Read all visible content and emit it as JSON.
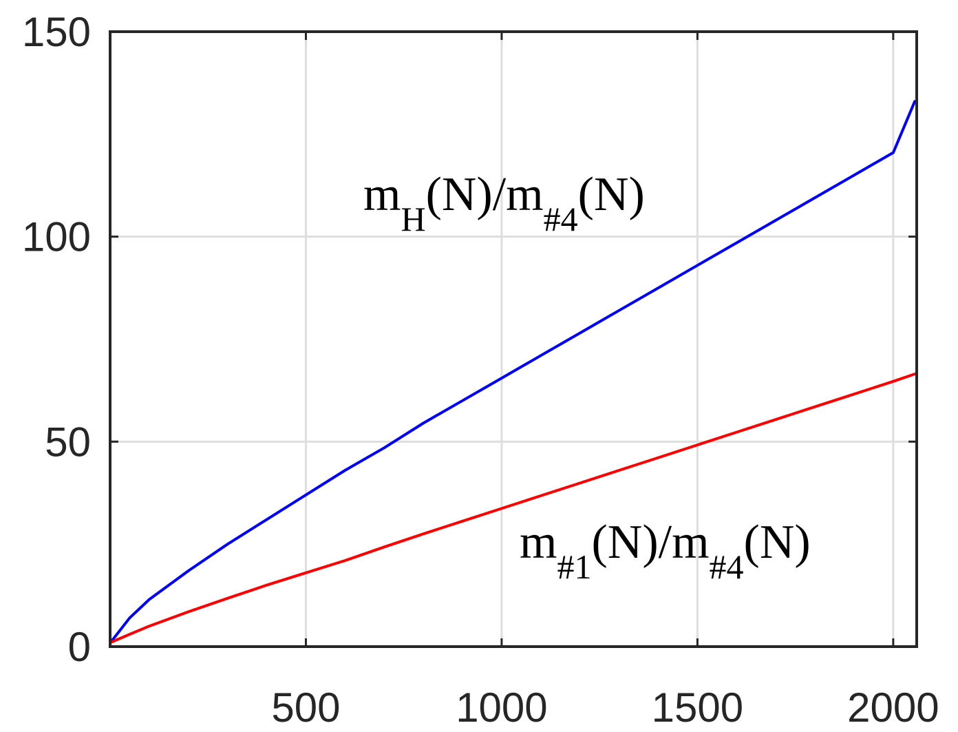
{
  "chart_data": {
    "type": "line",
    "title": "",
    "xlabel": "",
    "ylabel": "",
    "xlim": [
      0,
      2060
    ],
    "ylim": [
      0,
      150
    ],
    "grid": true,
    "x_ticks": [
      500,
      1000,
      1500,
      2000
    ],
    "x_tick_labels": [
      "500",
      "1000",
      "1500",
      "2000"
    ],
    "y_ticks": [
      0,
      50,
      100,
      150
    ],
    "y_tick_labels": [
      "0",
      "50",
      "100",
      "150"
    ],
    "x": [
      1,
      50,
      100,
      200,
      300,
      400,
      500,
      600,
      700,
      800,
      900,
      1000,
      1100,
      1200,
      1300,
      1400,
      1500,
      1600,
      1700,
      1800,
      1900,
      2000,
      2055
    ],
    "series": [
      {
        "name": "m_H(N)/m_#4(N)",
        "color": "#0000ff",
        "values": [
          1,
          7,
          11.5,
          18.5,
          25,
          31,
          37,
          43,
          48.5,
          54.5,
          60,
          65.5,
          71,
          76.5,
          82,
          87.5,
          93,
          98.5,
          104,
          109.5,
          115,
          120.5,
          133
        ]
      },
      {
        "name": "m_#1(N)/m_#4(N)",
        "color": "#ff0000",
        "values": [
          1,
          3,
          5,
          8.5,
          11.8,
          15,
          18,
          21,
          24.3,
          27.5,
          30.6,
          33.7,
          36.8,
          39.9,
          43,
          46.1,
          49.2,
          52.3,
          55.4,
          58.5,
          61.6,
          64.7,
          66.5
        ]
      }
    ],
    "annotations": [
      {
        "base": "m",
        "sub1": "H",
        "mid": "(N)/m",
        "sub2": "#4",
        "tail": "(N)",
        "color": "#000000"
      },
      {
        "base": "m",
        "sub1": "#1",
        "mid": "(N)/m",
        "sub2": "#4",
        "tail": "(N)",
        "color": "#000000"
      }
    ]
  }
}
